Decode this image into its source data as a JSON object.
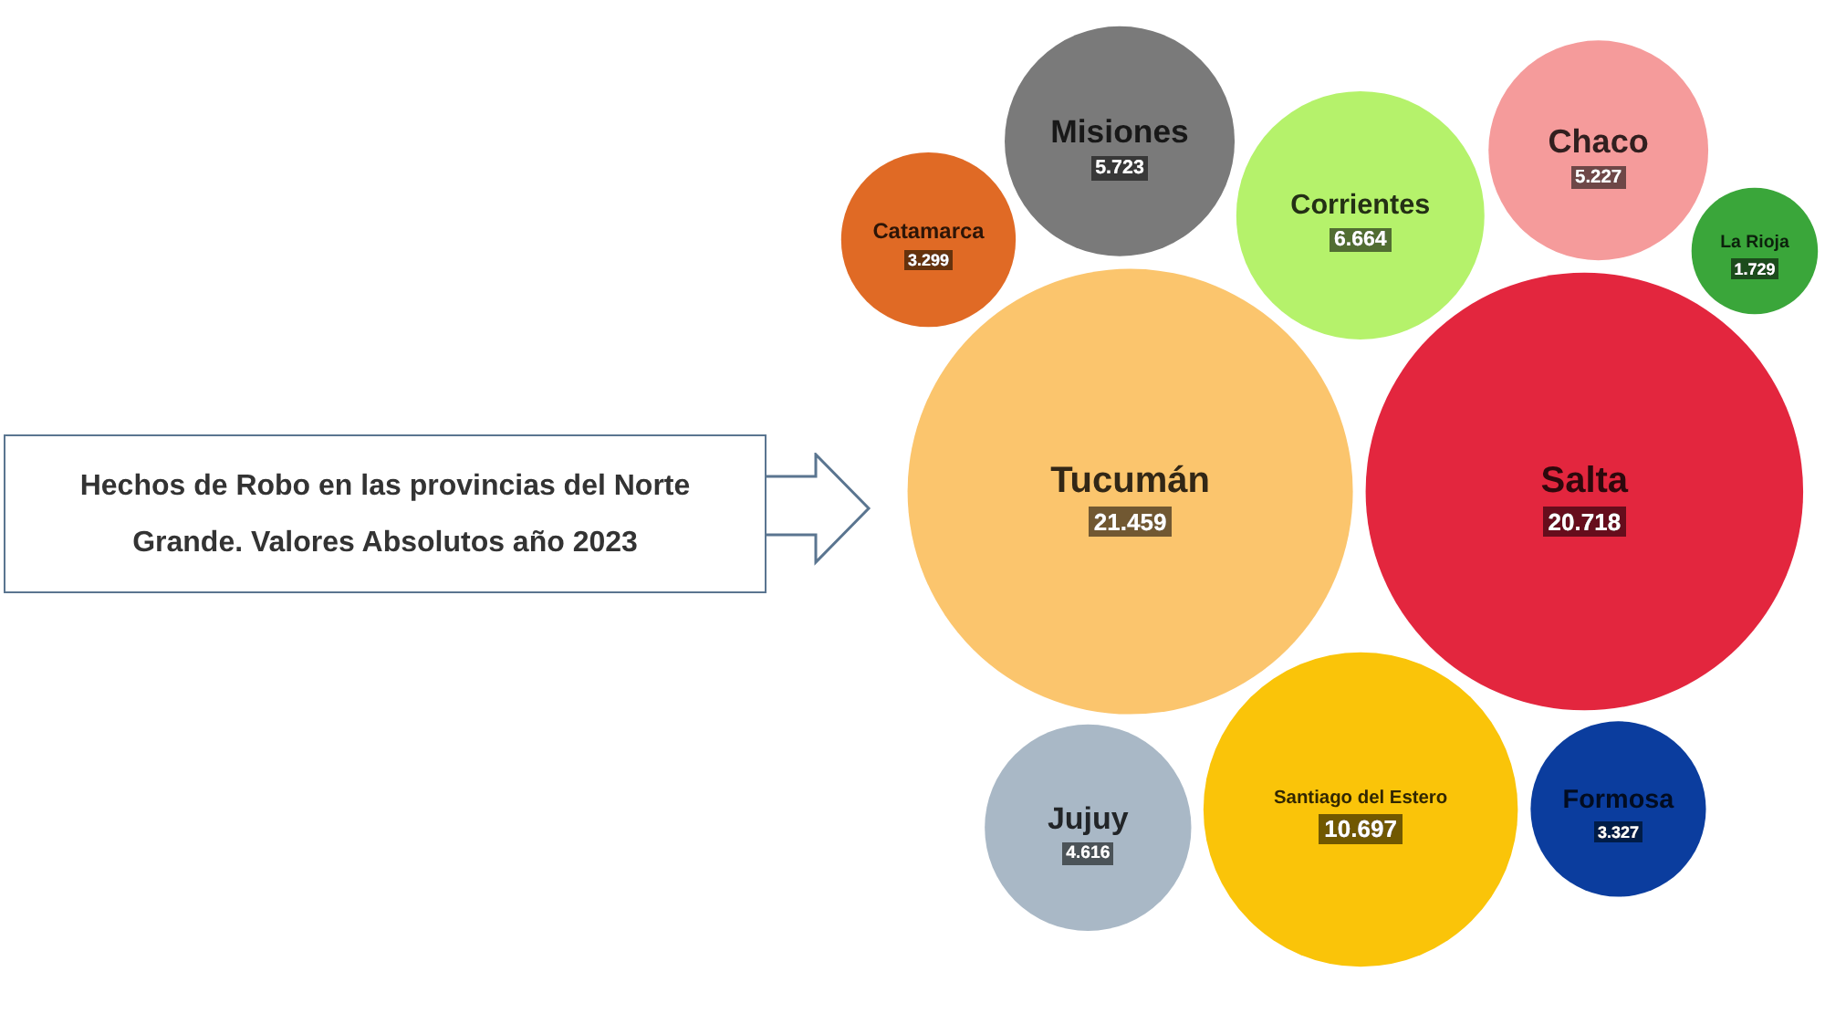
{
  "chart_data": {
    "type": "other",
    "title": "Hechos de Robo en las provincias del Norte Grande. Valores Absolutos año 2023",
    "categories": [
      "Tucumán",
      "Salta",
      "Santiago del Estero",
      "Corrientes",
      "Misiones",
      "Chaco",
      "Jujuy",
      "Formosa",
      "Catamarca",
      "La Rioja"
    ],
    "values": [
      21459,
      20718,
      10697,
      6664,
      5723,
      5227,
      4616,
      3327,
      3299,
      1729
    ],
    "colors": [
      "#fbc56d",
      "#e3263e",
      "#fac409",
      "#b5f26b",
      "#7a7a7a",
      "#f59b9b",
      "#a9b8c6",
      "#0b3d9e",
      "#e06a25",
      "#3aa63a"
    ],
    "value_labels": [
      "21.459",
      "20.718",
      "10.697",
      "6.664",
      "5.723",
      "5.227",
      "4.616",
      "3.327",
      "3.299",
      "1.729"
    ]
  }
}
